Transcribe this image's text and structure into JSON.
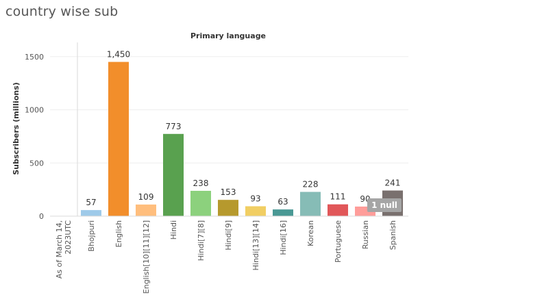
{
  "sheet_title": "country wise sub",
  "null_indicator": "1 null",
  "chart_data": {
    "type": "bar",
    "title": "Primary language",
    "xlabel": "",
    "ylabel": "Subscribers (millions)",
    "ylim": [
      0,
      1650
    ],
    "yticks": [
      0,
      500,
      1000,
      1500
    ],
    "grid": true,
    "categories": [
      "As of March 14, 2023UTC",
      "Bhojpuri",
      "English",
      "English[10][11][12]",
      "Hindi",
      "Hindi[7][8]",
      "Hindi[9]",
      "Hindi[13][14]",
      "Hindi[16]",
      "Korean",
      "Portuguese",
      "Russian",
      "Spanish"
    ],
    "category_lines": [
      [
        "As of March 14,",
        "2023UTC"
      ],
      [
        "Bhojpuri"
      ],
      [
        "English"
      ],
      [
        "English[10][11][12]"
      ],
      [
        "Hindi"
      ],
      [
        "Hindi[7][8]"
      ],
      [
        "Hindi[9]"
      ],
      [
        "Hindi[13][14]"
      ],
      [
        "Hindi[16]"
      ],
      [
        "Korean"
      ],
      [
        "Portuguese"
      ],
      [
        "Russian"
      ],
      [
        "Spanish"
      ]
    ],
    "values": [
      null,
      57,
      1450,
      109,
      773,
      238,
      153,
      93,
      63,
      228,
      111,
      90,
      241
    ],
    "value_labels": [
      "",
      "57",
      "1,450",
      "109",
      "773",
      "238",
      "153",
      "93",
      "63",
      "228",
      "111",
      "90",
      "241"
    ],
    "colors": [
      "#9ecae9",
      "#9ecae9",
      "#f28e2b",
      "#ffbe7d",
      "#59a14f",
      "#8cd17d",
      "#b6992d",
      "#f1ce63",
      "#499894",
      "#86bcb6",
      "#e15759",
      "#ff9d9a",
      "#79706e"
    ]
  }
}
